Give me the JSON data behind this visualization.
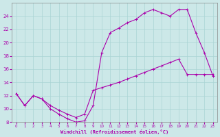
{
  "xlabel": "Windchill (Refroidissement éolien,°C)",
  "background_color": "#cce8e8",
  "line_color": "#aa00aa",
  "grid_color": "#aad4d4",
  "xlim": [
    -0.5,
    23.5
  ],
  "ylim": [
    8,
    26
  ],
  "yticks": [
    8,
    10,
    12,
    14,
    16,
    18,
    20,
    22,
    24
  ],
  "xticks": [
    0,
    1,
    2,
    3,
    4,
    5,
    6,
    7,
    8,
    9,
    10,
    11,
    12,
    13,
    14,
    15,
    16,
    17,
    18,
    19,
    20,
    21,
    22,
    23
  ],
  "curve1_x": [
    0,
    1,
    2,
    3,
    4,
    5,
    6,
    7,
    8,
    9,
    10,
    11,
    12,
    13,
    14,
    15,
    16,
    17,
    18,
    19,
    20,
    21,
    22,
    23
  ],
  "curve1_y": [
    12.3,
    10.5,
    12.0,
    11.5,
    10.0,
    9.2,
    8.5,
    8.0,
    8.2,
    10.5,
    18.5,
    21.5,
    22.2,
    23.0,
    23.5,
    24.5,
    25.0,
    24.5,
    24.0,
    25.0,
    25.0,
    21.5,
    18.5,
    15.0
  ],
  "curve2_x": [
    0,
    1,
    2,
    3,
    4,
    5,
    6,
    7,
    8,
    9,
    10,
    11,
    12,
    13,
    14,
    15,
    16,
    17,
    18,
    19,
    20,
    21,
    22,
    23
  ],
  "curve2_y": [
    12.3,
    10.5,
    12.0,
    11.5,
    10.5,
    9.8,
    9.2,
    8.7,
    9.2,
    12.8,
    13.2,
    13.6,
    14.0,
    14.5,
    15.0,
    15.5,
    16.0,
    16.5,
    17.0,
    17.5,
    15.2,
    15.2,
    15.2,
    15.2
  ]
}
